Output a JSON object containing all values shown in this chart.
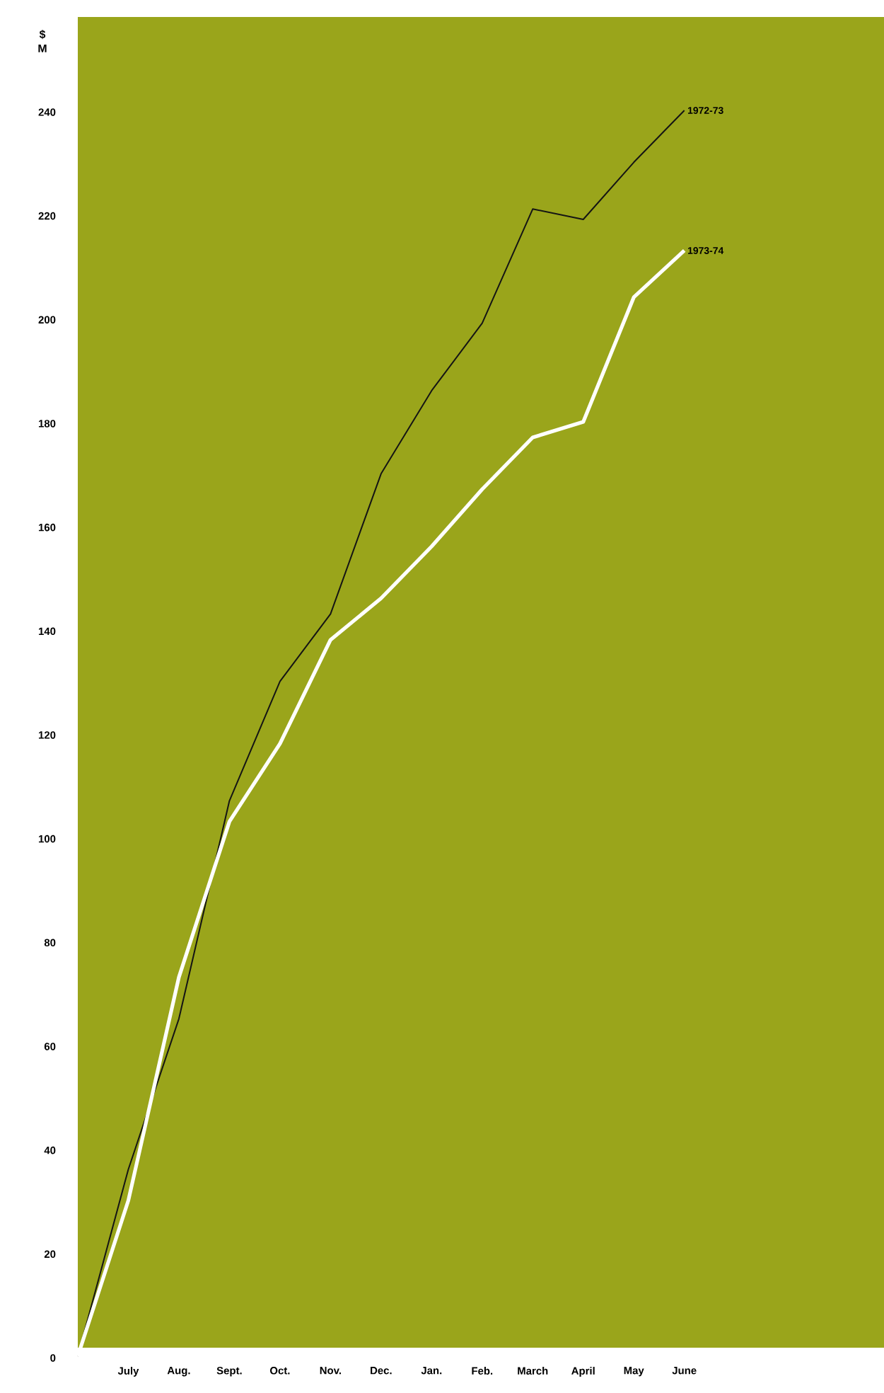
{
  "chart_data": {
    "type": "line",
    "ylabel": "$ M",
    "categories": [
      null,
      "July",
      "Aug.",
      "Sept.",
      "Oct.",
      "Nov.",
      "Dec.",
      "Jan.",
      "Feb.",
      "March",
      "April",
      "May",
      "June"
    ],
    "series": [
      {
        "name": "1972-73",
        "color": "#141414",
        "values": [
          0,
          36,
          65,
          107,
          130,
          143,
          170,
          186,
          199,
          221,
          219,
          230,
          240
        ]
      },
      {
        "name": "1973-74",
        "color": "#ffffff",
        "values": [
          0,
          30,
          73,
          103,
          118,
          138,
          146,
          156,
          167,
          177,
          180,
          204,
          213
        ]
      }
    ],
    "ylim": [
      0,
      258
    ],
    "yticks": [
      0,
      20,
      40,
      60,
      80,
      100,
      120,
      140,
      160,
      180,
      200,
      220,
      240
    ],
    "grid": false,
    "legend": false,
    "marker": "none",
    "line_style": "solid"
  }
}
